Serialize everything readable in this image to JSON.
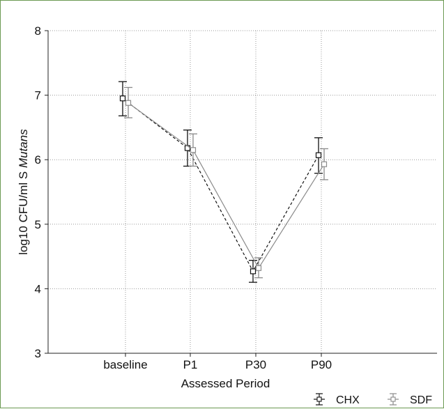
{
  "chart_data": {
    "type": "line",
    "xlabel": "Assessed Period",
    "ylabel_main": "log10 CFU/ml S ",
    "ylabel_italic": "Mutans",
    "categories": [
      "baseline",
      "P1",
      "P30",
      "P90"
    ],
    "ylim": [
      3,
      8
    ],
    "yticks": [
      "3",
      "4",
      "5",
      "6",
      "7",
      "8"
    ],
    "grid": true,
    "legend_position": "bottom-right",
    "series": [
      {
        "name": "CHX",
        "color": "#111111",
        "line_style": "dashed",
        "values": [
          6.95,
          6.18,
          4.27,
          6.07
        ],
        "err_low": [
          6.68,
          5.9,
          4.1,
          5.79
        ],
        "err_high": [
          7.21,
          6.46,
          4.44,
          6.34
        ]
      },
      {
        "name": "SDF",
        "color": "#8a8a8a",
        "line_style": "solid",
        "values": [
          6.88,
          6.15,
          4.32,
          5.93
        ],
        "err_low": [
          6.65,
          5.9,
          4.17,
          5.69
        ],
        "err_high": [
          7.12,
          6.4,
          4.48,
          6.17
        ]
      }
    ]
  }
}
